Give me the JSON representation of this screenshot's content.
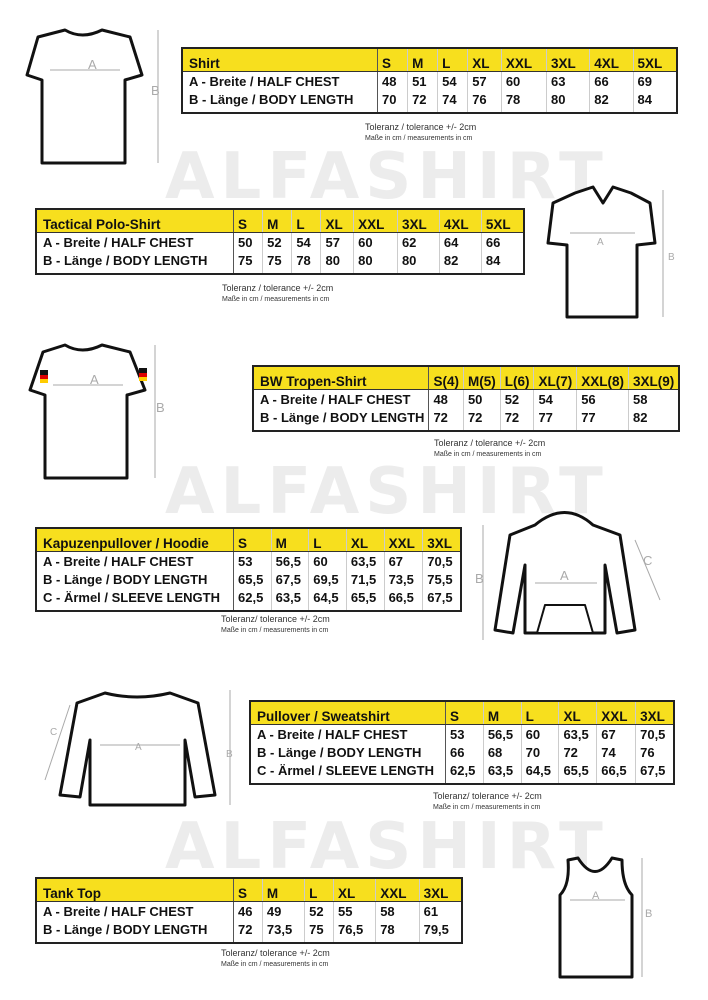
{
  "watermark": "ALFASHIRT",
  "tables": [
    {
      "id": "shirt",
      "title": "Shirt",
      "sizes": [
        "S",
        "M",
        "L",
        "XL",
        "XXL",
        "3XL",
        "4XL",
        "5XL"
      ],
      "rows": [
        {
          "label": "A -  Breite / HALF CHEST",
          "values": [
            "48",
            "51",
            "54",
            "57",
            "60",
            "63",
            "66",
            "69"
          ]
        },
        {
          "label": "B -  Länge / BODY LENGTH",
          "values": [
            "70",
            "72",
            "74",
            "76",
            "78",
            "80",
            "82",
            "84"
          ]
        }
      ],
      "tolerance": "Toleranz / tolerance +/- 2cm",
      "measure": "Maße in cm / measurements in cm"
    },
    {
      "id": "polo",
      "title": "Tactical Polo-Shirt",
      "sizes": [
        "S",
        "M",
        "L",
        "XL",
        "XXL",
        "3XL",
        "4XL",
        "5XL"
      ],
      "rows": [
        {
          "label": "A -  Breite / HALF CHEST",
          "values": [
            "50",
            "52",
            "54",
            "57",
            "60",
            "62",
            "64",
            "66"
          ]
        },
        {
          "label": "B -  Länge / BODY LENGTH",
          "values": [
            "75",
            "75",
            "78",
            "80",
            "80",
            "80",
            "82",
            "84"
          ]
        }
      ],
      "tolerance": "Toleranz / tolerance +/- 2cm",
      "measure": "Maße in cm / measurements in cm"
    },
    {
      "id": "bw",
      "title": "BW Tropen-Shirt",
      "sizes": [
        "S(4)",
        "M(5)",
        "L(6)",
        "XL(7)",
        "XXL(8)",
        "3XL(9)"
      ],
      "rows": [
        {
          "label": "A -  Breite / HALF CHEST",
          "values": [
            "48",
            "50",
            "52",
            "54",
            "56",
            "58"
          ]
        },
        {
          "label": "B -  Länge / BODY LENGTH",
          "values": [
            "72",
            "72",
            "72",
            "77",
            "77",
            "82"
          ]
        }
      ],
      "tolerance": "Toleranz / tolerance +/- 2cm",
      "measure": "Maße in cm / measurements in cm"
    },
    {
      "id": "hoodie",
      "title": "Kapuzenpullover / Hoodie",
      "sizes": [
        "S",
        "M",
        "L",
        "XL",
        "XXL",
        "3XL"
      ],
      "rows": [
        {
          "label": "A -  Breite / HALF CHEST",
          "values": [
            "53",
            "56,5",
            "60",
            "63,5",
            "67",
            "70,5"
          ]
        },
        {
          "label": "B -  Länge / BODY LENGTH",
          "values": [
            "65,5",
            "67,5",
            "69,5",
            "71,5",
            "73,5",
            "75,5"
          ]
        },
        {
          "label": "C -  Ärmel / SLEEVE LENGTH",
          "values": [
            "62,5",
            "63,5",
            "64,5",
            "65,5",
            "66,5",
            "67,5"
          ]
        }
      ],
      "tolerance": "Toleranz/ tolerance +/- 2cm",
      "measure": "Maße in cm / measurements in cm"
    },
    {
      "id": "sweat",
      "title": "Pullover / Sweatshirt",
      "sizes": [
        "S",
        "M",
        "L",
        "XL",
        "XXL",
        "3XL"
      ],
      "rows": [
        {
          "label": "A -  Breite / HALF CHEST",
          "values": [
            "53",
            "56,5",
            "60",
            "63,5",
            "67",
            "70,5"
          ]
        },
        {
          "label": "B -  Länge / BODY LENGTH",
          "values": [
            "66",
            "68",
            "70",
            "72",
            "74",
            "76"
          ]
        },
        {
          "label": "C -  Ärmel / SLEEVE LENGTH",
          "values": [
            "62,5",
            "63,5",
            "64,5",
            "65,5",
            "66,5",
            "67,5"
          ]
        }
      ],
      "tolerance": "Toleranz/ tolerance +/- 2cm",
      "measure": "Maße in cm / measurements in cm"
    },
    {
      "id": "tank",
      "title": "Tank Top",
      "sizes": [
        "S",
        "M",
        "L",
        "XL",
        "XXL",
        "3XL"
      ],
      "rows": [
        {
          "label": "A -  Breite / HALF CHEST",
          "values": [
            "46",
            "49",
            "52",
            "55",
            "58",
            "61"
          ]
        },
        {
          "label": "B -  Länge / BODY LENGTH",
          "values": [
            "72",
            "73,5",
            "75",
            "76,5",
            "78",
            "79,5"
          ]
        }
      ],
      "tolerance": "Toleranz/ tolerance +/- 2cm",
      "measure": "Maße in cm / measurements in cm"
    }
  ],
  "diagram_labels": {
    "a": "A",
    "b": "B",
    "c": "C"
  },
  "colors": {
    "header_yellow": "#f7df1e",
    "border": "#222222",
    "watermark": "#ececec"
  }
}
